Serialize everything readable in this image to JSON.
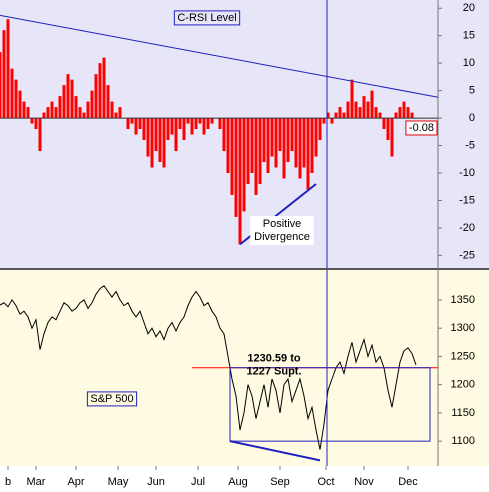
{
  "chart_data": [
    {
      "type": "bar",
      "title": "C-RSI Level",
      "color": "#ff0000",
      "x": [
        0,
        1,
        2,
        3,
        4,
        5,
        6,
        7,
        8,
        9,
        10,
        11,
        12,
        13,
        14,
        15,
        16,
        17,
        18,
        19,
        20,
        21,
        22,
        23,
        24,
        25,
        26,
        27,
        28,
        29,
        30,
        31,
        32,
        33,
        34,
        35,
        36,
        37,
        38,
        39,
        40,
        41,
        42,
        43,
        44,
        45,
        46,
        47,
        48,
        49,
        50,
        51,
        52,
        53,
        54,
        55,
        56,
        57,
        58,
        59,
        60,
        61,
        62,
        63,
        64,
        65,
        66,
        67,
        68,
        69,
        70,
        71,
        72,
        73,
        74,
        75,
        76,
        77,
        78,
        79,
        80,
        81,
        82,
        83,
        84,
        85,
        86,
        87,
        88,
        89,
        90,
        91,
        92,
        93,
        94,
        95,
        96,
        97,
        98,
        99,
        100,
        101,
        102,
        103,
        104
      ],
      "values": [
        12,
        16,
        18,
        9,
        7,
        5,
        3,
        2,
        -1,
        -2,
        -6,
        1,
        2,
        3,
        2,
        4,
        6,
        8,
        7,
        4,
        2,
        1,
        3,
        5,
        8,
        10,
        11,
        6,
        3,
        1,
        2,
        0,
        -2,
        -1,
        -3,
        -2,
        -4,
        -7,
        -9,
        -6,
        -8,
        -9,
        -4,
        -3,
        -6,
        -2,
        -4,
        -1,
        -3,
        -2,
        -1,
        -3,
        -2,
        -1,
        0,
        -2,
        -6,
        -10,
        -14,
        -18,
        -23,
        -17,
        -12,
        -10,
        -14,
        -12,
        -8,
        -10,
        -7,
        -9,
        -6,
        -11,
        -8,
        -6,
        -9,
        -11,
        -9,
        -13,
        -10,
        -7,
        -4,
        -1,
        1,
        -1,
        1,
        2,
        1,
        3,
        7,
        3,
        2,
        4,
        3,
        5,
        2,
        1,
        -2,
        -4,
        -7,
        1,
        2,
        3,
        2,
        1,
        -0.08
      ],
      "xlim": [
        0,
        109.5
      ],
      "ylim": [
        -27.3,
        21.5
      ],
      "yticks": [
        20,
        15,
        10,
        5,
        0,
        -5,
        -10,
        -15,
        -20,
        -25
      ],
      "lines": [
        {
          "x": [
            0,
            109.5
          ],
          "y": [
            18.7,
            3.8
          ]
        },
        {
          "x": [
            60,
            79
          ],
          "y": [
            -23,
            -12
          ]
        }
      ],
      "vlines": [
        81.75
      ],
      "annotation": {
        "x": 70.5,
        "y": -20.5,
        "text": [
          "Positive",
          "Divergence"
        ]
      }
    },
    {
      "type": "line",
      "name": "S&P 500",
      "color": "#000000",
      "x": [
        0,
        1,
        2,
        3,
        4,
        5,
        6,
        7,
        8,
        9,
        10,
        11,
        12,
        13,
        14,
        15,
        16,
        17,
        18,
        19,
        20,
        21,
        22,
        23,
        24,
        25,
        26,
        27,
        28,
        29,
        30,
        31,
        32,
        33,
        34,
        35,
        36,
        37,
        38,
        39,
        40,
        41,
        42,
        43,
        44,
        45,
        46,
        47,
        48,
        49,
        50,
        51,
        52,
        53,
        54,
        55,
        56,
        57,
        58,
        59,
        60,
        61,
        62,
        63,
        64,
        65,
        66,
        67,
        68,
        69,
        70,
        71,
        72,
        73,
        74,
        75,
        76,
        77,
        78,
        79,
        80,
        81,
        82,
        83,
        84,
        85,
        86,
        87,
        88,
        89,
        90,
        91,
        92,
        93,
        94,
        95,
        96,
        97,
        98,
        99,
        100,
        101,
        102,
        103,
        104
      ],
      "values": [
        1341,
        1345,
        1338,
        1350,
        1340,
        1325,
        1330,
        1320,
        1300,
        1315,
        1262,
        1290,
        1310,
        1320,
        1315,
        1330,
        1345,
        1340,
        1330,
        1335,
        1345,
        1350,
        1335,
        1345,
        1360,
        1370,
        1375,
        1365,
        1355,
        1365,
        1350,
        1340,
        1345,
        1330,
        1320,
        1330,
        1310,
        1290,
        1300,
        1285,
        1295,
        1280,
        1300,
        1310,
        1295,
        1310,
        1320,
        1340,
        1355,
        1365,
        1355,
        1340,
        1345,
        1330,
        1320,
        1300,
        1290,
        1250,
        1210,
        1180,
        1120,
        1150,
        1200,
        1180,
        1140,
        1170,
        1200,
        1160,
        1210,
        1190,
        1150,
        1200,
        1210,
        1170,
        1190,
        1210,
        1180,
        1140,
        1160,
        1120,
        1085,
        1130,
        1190,
        1210,
        1230,
        1240,
        1220,
        1250,
        1275,
        1240,
        1260,
        1280,
        1250,
        1270,
        1240,
        1250,
        1230,
        1190,
        1160,
        1200,
        1240,
        1260,
        1265,
        1255,
        1235
      ],
      "xlim": [
        0,
        109.5
      ],
      "ylim": [
        1056,
        1403
      ],
      "yticks": [
        1350,
        1300,
        1250,
        1200,
        1150,
        1100
      ],
      "xticks": [
        {
          "value": 2,
          "label": "b"
        },
        {
          "value": 9,
          "label": "Mar"
        },
        {
          "value": 19,
          "label": "Apr"
        },
        {
          "value": 29.5,
          "label": "May"
        },
        {
          "value": 39,
          "label": "Jun"
        },
        {
          "value": 49.5,
          "label": "Jul"
        },
        {
          "value": 59.5,
          "label": "Aug"
        },
        {
          "value": 70,
          "label": "Sep"
        },
        {
          "value": 81.5,
          "label": "Oct"
        },
        {
          "value": 91,
          "label": "Nov"
        },
        {
          "value": 102,
          "label": "Dec"
        }
      ],
      "vlines": [
        81.75
      ],
      "hlines": [
        {
          "y": 1230,
          "x": [
            48,
            109.5
          ],
          "color": "#ff0000"
        }
      ],
      "boxes": [
        {
          "x": [
            57.5,
            107.5
          ],
          "y": [
            1100,
            1230
          ]
        }
      ],
      "lines": [
        {
          "x": [
            57.5,
            80
          ],
          "y": [
            1100,
            1066
          ]
        }
      ],
      "annotation": {
        "x": 68.5,
        "y": 1235,
        "text": [
          "1230.59 to",
          "1227 Supt."
        ]
      }
    }
  ]
}
